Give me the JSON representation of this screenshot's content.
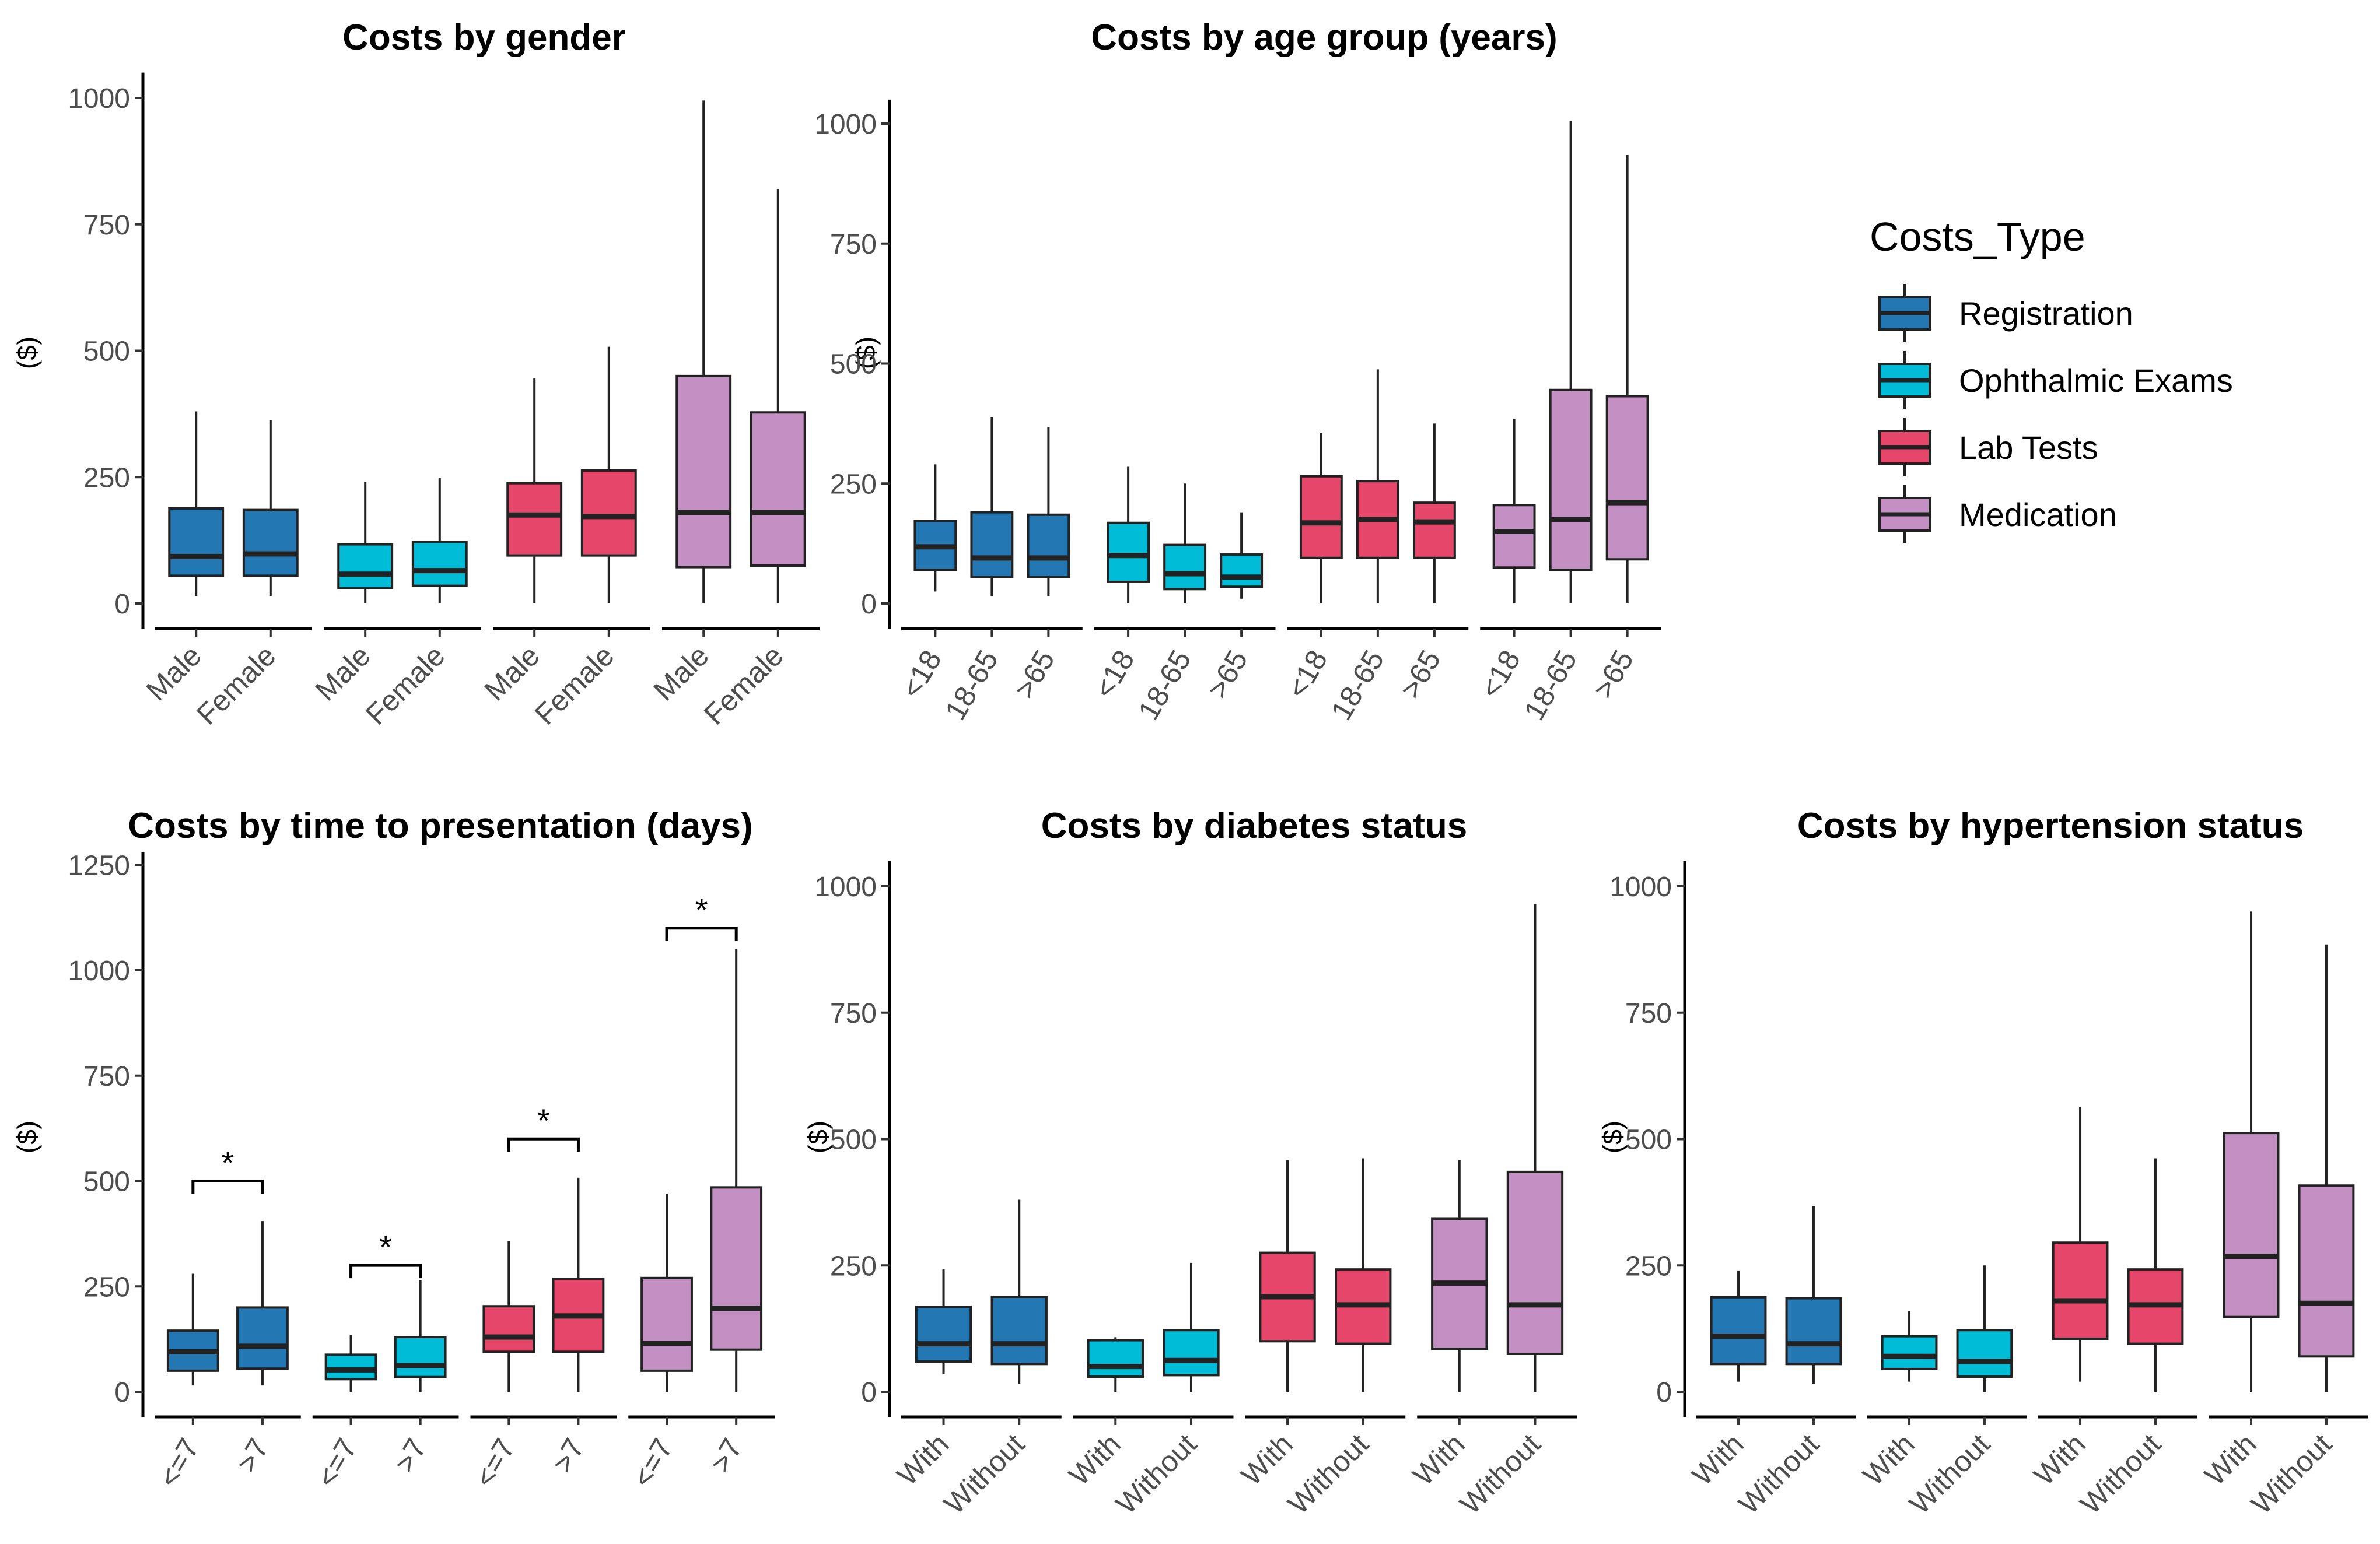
{
  "legend": {
    "title": "Costs_Type",
    "entries": [
      {
        "label": "Registration",
        "color": "#2378b4"
      },
      {
        "label": "Ophthalmic Exams",
        "color": "#00bcd6"
      },
      {
        "label": "Lab Tests",
        "color": "#e6466a"
      },
      {
        "label": "Medication",
        "color": "#c490c4"
      }
    ]
  },
  "chart_data": [
    {
      "type": "box",
      "title": "Costs by gender",
      "ylabel": "($)",
      "ylim": [
        -50,
        1050
      ],
      "yticks": [
        0,
        250,
        500,
        750,
        1000
      ],
      "categories": [
        "Male",
        "Female"
      ],
      "groups": [
        {
          "cost_type": "Registration",
          "boxes": [
            {
              "category": "Male",
              "min": 15,
              "q1": 55,
              "median": 93,
              "q3": 188,
              "max": 380
            },
            {
              "category": "Female",
              "min": 15,
              "q1": 55,
              "median": 98,
              "q3": 185,
              "max": 363
            }
          ]
        },
        {
          "cost_type": "Ophthalmic Exams",
          "boxes": [
            {
              "category": "Male",
              "min": 0,
              "q1": 30,
              "median": 58,
              "q3": 117,
              "max": 240
            },
            {
              "category": "Female",
              "min": 0,
              "q1": 35,
              "median": 65,
              "q3": 122,
              "max": 248
            }
          ]
        },
        {
          "cost_type": "Lab Tests",
          "boxes": [
            {
              "category": "Male",
              "min": 0,
              "q1": 95,
              "median": 175,
              "q3": 238,
              "max": 445
            },
            {
              "category": "Female",
              "min": 0,
              "q1": 95,
              "median": 172,
              "q3": 263,
              "max": 508
            }
          ]
        },
        {
          "cost_type": "Medication",
          "boxes": [
            {
              "category": "Male",
              "min": 0,
              "q1": 72,
              "median": 180,
              "q3": 450,
              "max": 995
            },
            {
              "category": "Female",
              "min": 0,
              "q1": 75,
              "median": 180,
              "q3": 378,
              "max": 820
            }
          ]
        }
      ]
    },
    {
      "type": "box",
      "title": "Costs by age group (years)",
      "ylabel": "($)",
      "ylim": [
        -50,
        1050
      ],
      "yticks": [
        0,
        250,
        500,
        750,
        1000
      ],
      "categories": [
        "<18",
        "18-65",
        ">65"
      ],
      "groups": [
        {
          "cost_type": "Registration",
          "boxes": [
            {
              "category": "<18",
              "min": 25,
              "q1": 70,
              "median": 118,
              "q3": 172,
              "max": 290
            },
            {
              "category": "18-65",
              "min": 15,
              "q1": 55,
              "median": 95,
              "q3": 190,
              "max": 388
            },
            {
              "category": ">65",
              "min": 15,
              "q1": 55,
              "median": 95,
              "q3": 185,
              "max": 368
            }
          ]
        },
        {
          "cost_type": "Ophthalmic Exams",
          "boxes": [
            {
              "category": "<18",
              "min": 0,
              "q1": 45,
              "median": 100,
              "q3": 168,
              "max": 285
            },
            {
              "category": "18-65",
              "min": 0,
              "q1": 30,
              "median": 62,
              "q3": 122,
              "max": 250
            },
            {
              "category": ">65",
              "min": 10,
              "q1": 35,
              "median": 55,
              "q3": 102,
              "max": 190
            }
          ]
        },
        {
          "cost_type": "Lab Tests",
          "boxes": [
            {
              "category": "<18",
              "min": 0,
              "q1": 95,
              "median": 168,
              "q3": 265,
              "max": 355
            },
            {
              "category": "18-65",
              "min": 0,
              "q1": 95,
              "median": 175,
              "q3": 255,
              "max": 488
            },
            {
              "category": ">65",
              "min": 0,
              "q1": 95,
              "median": 170,
              "q3": 210,
              "max": 375
            }
          ]
        },
        {
          "cost_type": "Medication",
          "boxes": [
            {
              "category": "<18",
              "min": 0,
              "q1": 75,
              "median": 150,
              "q3": 205,
              "max": 385
            },
            {
              "category": "18-65",
              "min": 0,
              "q1": 70,
              "median": 175,
              "q3": 445,
              "max": 1005
            },
            {
              "category": ">65",
              "min": 0,
              "q1": 92,
              "median": 210,
              "q3": 432,
              "max": 935
            }
          ]
        }
      ]
    },
    {
      "type": "box",
      "title": "Costs by time to presentation (days)",
      "ylabel": "($)",
      "ylim": [
        -50,
        1280
      ],
      "yticks": [
        0,
        250,
        500,
        750,
        1000,
        1250
      ],
      "categories": [
        "<=7",
        ">7"
      ],
      "groups": [
        {
          "cost_type": "Registration",
          "significance": "*",
          "bracket_y": 500,
          "boxes": [
            {
              "category": "<=7",
              "min": 15,
              "q1": 50,
              "median": 95,
              "q3": 145,
              "max": 280
            },
            {
              "category": ">7",
              "min": 15,
              "q1": 55,
              "median": 108,
              "q3": 200,
              "max": 405
            }
          ]
        },
        {
          "cost_type": "Ophthalmic Exams",
          "significance": "*",
          "bracket_y": 300,
          "boxes": [
            {
              "category": "<=7",
              "min": 0,
              "q1": 30,
              "median": 52,
              "q3": 88,
              "max": 135
            },
            {
              "category": ">7",
              "min": 0,
              "q1": 35,
              "median": 62,
              "q3": 130,
              "max": 265
            }
          ]
        },
        {
          "cost_type": "Lab Tests",
          "significance": "*",
          "bracket_y": 600,
          "boxes": [
            {
              "category": "<=7",
              "min": 0,
              "q1": 95,
              "median": 130,
              "q3": 203,
              "max": 358
            },
            {
              "category": ">7",
              "min": 0,
              "q1": 95,
              "median": 180,
              "q3": 268,
              "max": 508
            }
          ]
        },
        {
          "cost_type": "Medication",
          "significance": "*",
          "bracket_y": 1100,
          "boxes": [
            {
              "category": "<=7",
              "min": 0,
              "q1": 50,
              "median": 115,
              "q3": 270,
              "max": 470
            },
            {
              "category": ">7",
              "min": 0,
              "q1": 100,
              "median": 198,
              "q3": 485,
              "max": 1050
            }
          ]
        }
      ]
    },
    {
      "type": "box",
      "title": "Costs by diabetes status",
      "ylabel": "($)",
      "ylim": [
        -50,
        1050
      ],
      "yticks": [
        0,
        250,
        500,
        750,
        1000
      ],
      "categories": [
        "With",
        "Without"
      ],
      "groups": [
        {
          "cost_type": "Registration",
          "boxes": [
            {
              "category": "With",
              "min": 35,
              "q1": 60,
              "median": 95,
              "q3": 168,
              "max": 242
            },
            {
              "category": "Without",
              "min": 15,
              "q1": 55,
              "median": 95,
              "q3": 188,
              "max": 380
            }
          ]
        },
        {
          "cost_type": "Ophthalmic Exams",
          "boxes": [
            {
              "category": "With",
              "min": 0,
              "q1": 30,
              "median": 50,
              "q3": 102,
              "max": 108
            },
            {
              "category": "Without",
              "min": 0,
              "q1": 33,
              "median": 62,
              "q3": 122,
              "max": 255
            }
          ]
        },
        {
          "cost_type": "Lab Tests",
          "boxes": [
            {
              "category": "With",
              "min": 0,
              "q1": 100,
              "median": 188,
              "q3": 275,
              "max": 458
            },
            {
              "category": "Without",
              "min": 0,
              "q1": 95,
              "median": 172,
              "q3": 242,
              "max": 462
            }
          ]
        },
        {
          "cost_type": "Medication",
          "boxes": [
            {
              "category": "With",
              "min": 0,
              "q1": 85,
              "median": 215,
              "q3": 342,
              "max": 458
            },
            {
              "category": "Without",
              "min": 0,
              "q1": 75,
              "median": 172,
              "q3": 435,
              "max": 965
            }
          ]
        }
      ]
    },
    {
      "type": "box",
      "title": "Costs by hypertension status",
      "ylabel": "($)",
      "ylim": [
        -50,
        1050
      ],
      "yticks": [
        0,
        250,
        500,
        750,
        1000
      ],
      "categories": [
        "With",
        "Without"
      ],
      "groups": [
        {
          "cost_type": "Registration",
          "boxes": [
            {
              "category": "With",
              "min": 20,
              "q1": 55,
              "median": 110,
              "q3": 187,
              "max": 240
            },
            {
              "category": "Without",
              "min": 15,
              "q1": 55,
              "median": 95,
              "q3": 185,
              "max": 367
            }
          ]
        },
        {
          "cost_type": "Ophthalmic Exams",
          "boxes": [
            {
              "category": "With",
              "min": 20,
              "q1": 45,
              "median": 70,
              "q3": 110,
              "max": 160
            },
            {
              "category": "Without",
              "min": 0,
              "q1": 30,
              "median": 60,
              "q3": 122,
              "max": 250
            }
          ]
        },
        {
          "cost_type": "Lab Tests",
          "boxes": [
            {
              "category": "With",
              "min": 20,
              "q1": 105,
              "median": 180,
              "q3": 295,
              "max": 563
            },
            {
              "category": "Without",
              "min": 0,
              "q1": 95,
              "median": 172,
              "q3": 242,
              "max": 462
            }
          ]
        },
        {
          "cost_type": "Medication",
          "boxes": [
            {
              "category": "With",
              "min": 0,
              "q1": 148,
              "median": 268,
              "q3": 512,
              "max": 950
            },
            {
              "category": "Without",
              "min": 0,
              "q1": 70,
              "median": 175,
              "q3": 408,
              "max": 885
            }
          ]
        }
      ]
    }
  ]
}
